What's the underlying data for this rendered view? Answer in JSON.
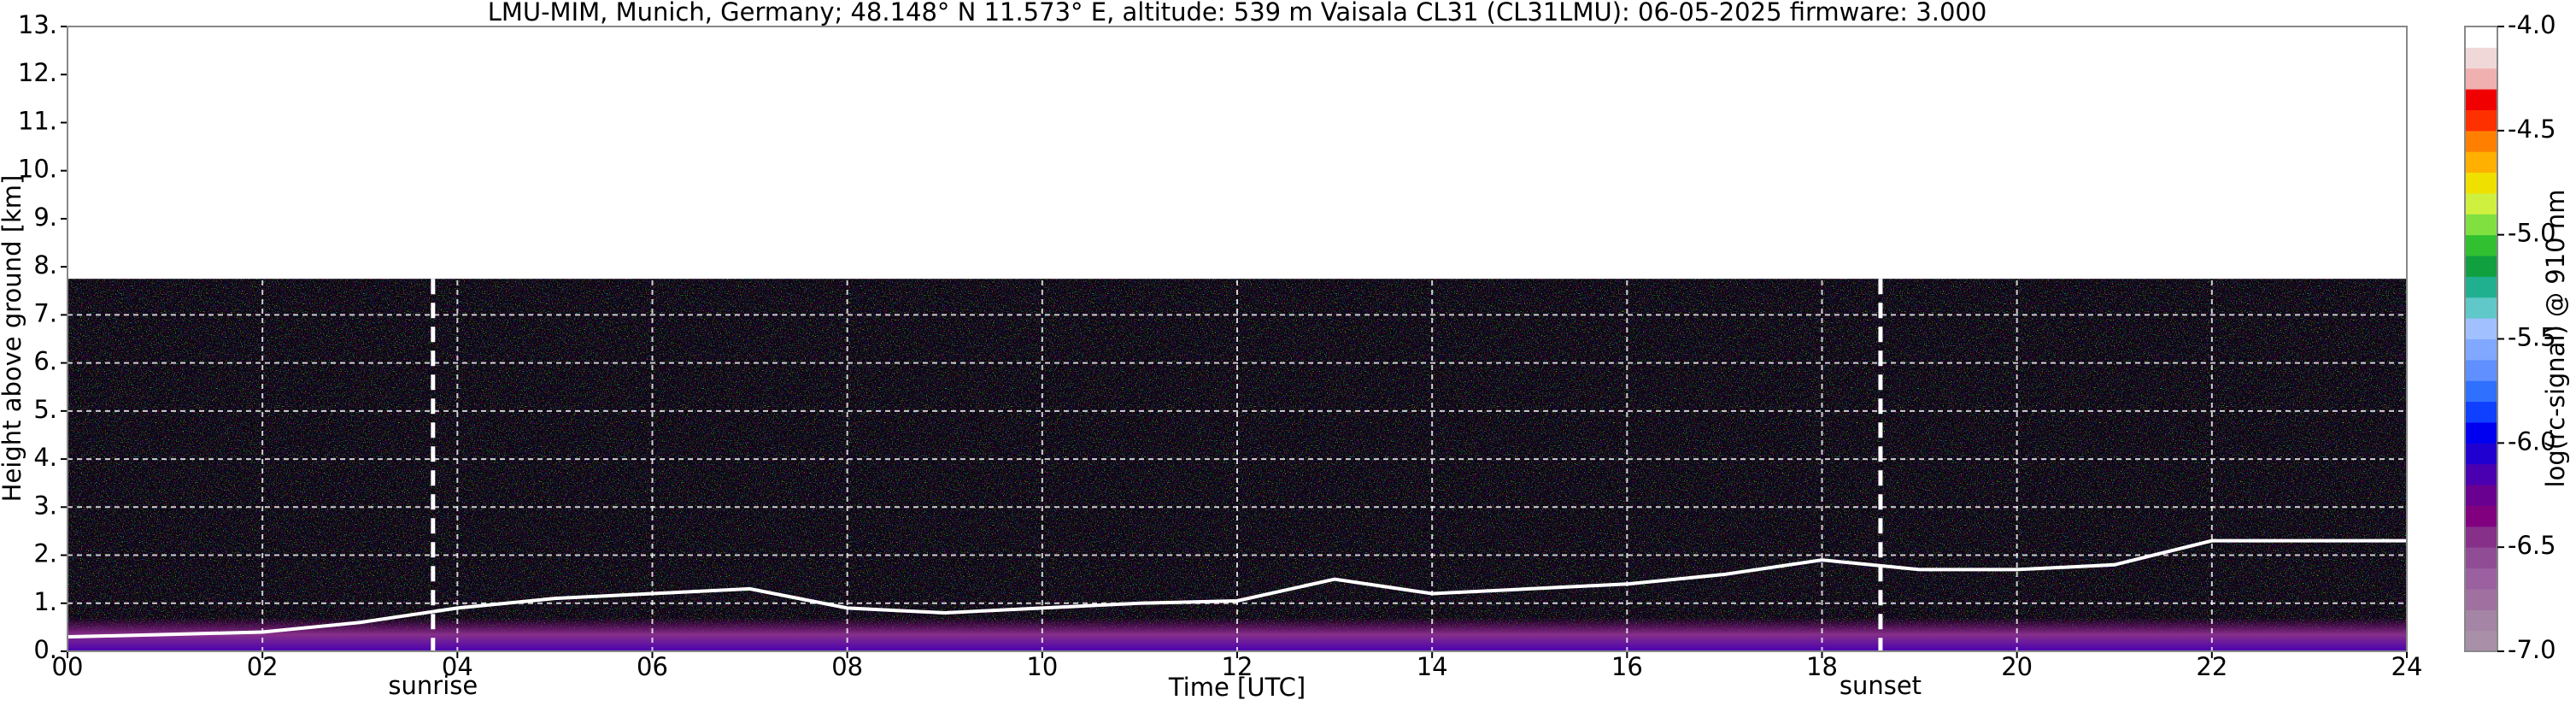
{
  "chart_data": {
    "type": "heatmap",
    "title": "LMU-MIM, Munich, Germany; 48.148° N 11.573° E, altitude: 539 m    Vaisala CL31 (CL31LMU): 06-05-2025    firmware: 3.000",
    "x_label": "Time [UTC]",
    "y_label": "Height above ground [km]",
    "xlim": [
      0,
      24
    ],
    "xticks": [
      {
        "value": 0,
        "label": "00"
      },
      {
        "value": 2,
        "label": "02"
      },
      {
        "value": 4,
        "label": "04"
      },
      {
        "value": 6,
        "label": "06"
      },
      {
        "value": 8,
        "label": "08"
      },
      10,
      12,
      14,
      16,
      18,
      20,
      22,
      24
    ],
    "ylim": [
      0,
      13
    ],
    "yticks": [
      {
        "value": 0,
        "label": "0."
      },
      {
        "value": 1,
        "label": "1."
      },
      {
        "value": 2,
        "label": "2."
      },
      {
        "value": 3,
        "label": "3."
      },
      {
        "value": 4,
        "label": "4."
      },
      {
        "value": 5,
        "label": "5."
      },
      {
        "value": 6,
        "label": "6."
      },
      {
        "value": 7,
        "label": "7."
      },
      {
        "value": 8,
        "label": "8."
      },
      {
        "value": 9,
        "label": "9."
      },
      {
        "value": 10,
        "label": "10."
      },
      {
        "value": 11,
        "label": "11."
      },
      {
        "value": 12,
        "label": "12."
      },
      {
        "value": 13,
        "label": "13."
      }
    ],
    "grid": true,
    "max_range": 7.75,
    "x": [
      0,
      1,
      2,
      3,
      4,
      5,
      6,
      7,
      8,
      9,
      10,
      11,
      12,
      13,
      14,
      15,
      16,
      17,
      18,
      19,
      20,
      21,
      22,
      23,
      24
    ],
    "series": [
      {
        "color": "#ffffff",
        "values": [
          0.3,
          0.35,
          0.4,
          0.6,
          0.9,
          1.1,
          1.2,
          1.3,
          0.9,
          0.8,
          0.9,
          1.0,
          1.05,
          1.5,
          1.2,
          1.3,
          1.4,
          1.6,
          1.9,
          1.7,
          1.7,
          1.8,
          2.3,
          2.3,
          2.3
        ]
      }
    ],
    "annotations": [
      {
        "text": "sunrise",
        "x": 3.75
      },
      {
        "text": "sunset",
        "x": 18.6
      }
    ],
    "colorbar": {
      "label": "log(rc-signal) @ 910 nm",
      "lim": [
        -7.0,
        -4.0
      ],
      "ticks": [
        {
          "value": -7.0,
          "label": "-7.0"
        },
        {
          "value": -6.5,
          "label": "-6.5"
        },
        {
          "value": -6.0,
          "label": "-6.0"
        },
        {
          "value": -5.5,
          "label": "-5.5"
        },
        {
          "value": -5.0,
          "label": "-5.0"
        },
        {
          "value": -4.5,
          "label": "-4.5"
        },
        {
          "value": -4.0,
          "label": "-4.0"
        }
      ],
      "levels": [
        -7.0,
        -6.9,
        -6.8,
        -6.7,
        -6.6,
        -6.5,
        -6.4,
        -6.3,
        -6.2,
        -6.1,
        -6.0,
        -5.9,
        -5.8,
        -5.7,
        -5.6,
        -5.5,
        -5.4,
        -5.3,
        -5.2,
        -5.1,
        -5.0,
        -4.9,
        -4.8,
        -4.7,
        -4.6,
        -4.5,
        -4.4,
        -4.3,
        -4.2,
        -4.1,
        -4.0
      ],
      "colors": [
        "#a890a8",
        "#a585a5",
        "#a070a0",
        "#9a60a0",
        "#904d96",
        "#86308a",
        "#800080",
        "#6a0090",
        "#4a00b0",
        "#2000d0",
        "#0000f0",
        "#1040ff",
        "#3070ff",
        "#6090ff",
        "#80a8ff",
        "#a0c0ff",
        "#60c8c8",
        "#20b090",
        "#10a040",
        "#30c030",
        "#80e040",
        "#d0f040",
        "#f0e000",
        "#ffb000",
        "#ff8000",
        "#ff3000",
        "#f00000",
        "#f0b0b0",
        "#f0d8d8",
        "#ffffff"
      ]
    }
  }
}
